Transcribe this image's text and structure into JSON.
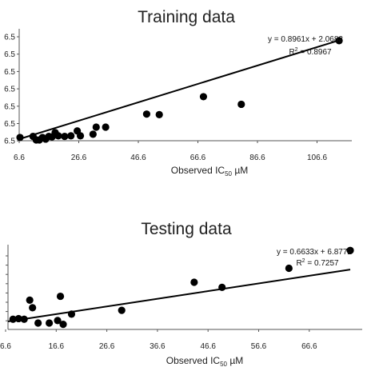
{
  "chart_data": [
    {
      "type": "scatter",
      "title": "Training data",
      "xlabel": "Observed IC50 µM",
      "xlabel_main": "Observed IC",
      "xlabel_sub": "50",
      "xlabel_unit": " µM",
      "xlim": [
        6.6,
        110
      ],
      "ylim": [
        6.5,
        106.5
      ],
      "x_ticks": [
        "6.6",
        "26.6",
        "46.6",
        "66.6",
        "86.6",
        "106.6"
      ],
      "y_ticks": [
        "6.5",
        "6.5",
        "6.5",
        "6.5",
        "6.5",
        "6.5",
        "6.5"
      ],
      "equation": "y = 0.8961x + 2.0682",
      "r2_label": "R",
      "r2_sup": "2",
      "r2_value": " = 0.8967",
      "trendline": {
        "slope": 0.8961,
        "intercept": 2.0682
      },
      "points": [
        {
          "x": 6.6,
          "y": 9.5
        },
        {
          "x": 11,
          "y": 10.5
        },
        {
          "x": 12,
          "y": 7
        },
        {
          "x": 13,
          "y": 6.5
        },
        {
          "x": 14,
          "y": 9.5
        },
        {
          "x": 15,
          "y": 8
        },
        {
          "x": 16,
          "y": 10.5
        },
        {
          "x": 17,
          "y": 10
        },
        {
          "x": 18,
          "y": 14
        },
        {
          "x": 19,
          "y": 11
        },
        {
          "x": 21,
          "y": 10.5
        },
        {
          "x": 23,
          "y": 11
        },
        {
          "x": 25,
          "y": 15.5
        },
        {
          "x": 26,
          "y": 11
        },
        {
          "x": 30,
          "y": 12.5
        },
        {
          "x": 31,
          "y": 19
        },
        {
          "x": 34,
          "y": 19
        },
        {
          "x": 47,
          "y": 31
        },
        {
          "x": 51,
          "y": 30.5
        },
        {
          "x": 65,
          "y": 47
        },
        {
          "x": 77,
          "y": 40
        },
        {
          "x": 108,
          "y": 98.5
        }
      ]
    },
    {
      "type": "scatter",
      "title": "Testing data",
      "xlabel": "Observed IC50 µM",
      "xlabel_main": "Observed IC",
      "xlabel_sub": "50",
      "xlabel_unit": " µM",
      "xlim": [
        6.6,
        69
      ],
      "ylim": [
        5,
        69
      ],
      "x_ticks": [
        "6.6",
        "16.6",
        "26.6",
        "36.6",
        "46.6",
        "56.6",
        "66.6"
      ],
      "y_ticks": [],
      "equation": "y = 0.6633x + 6.8772",
      "r2_label": "R",
      "r2_sup": "2",
      "r2_value": " = 0.7257",
      "trendline": {
        "slope": 0.6633,
        "intercept": 6.8772
      },
      "points": [
        {
          "x": 7.5,
          "y": 13
        },
        {
          "x": 8.5,
          "y": 13.5
        },
        {
          "x": 9.5,
          "y": 13
        },
        {
          "x": 10.5,
          "y": 28
        },
        {
          "x": 11,
          "y": 22
        },
        {
          "x": 12,
          "y": 10
        },
        {
          "x": 14,
          "y": 10
        },
        {
          "x": 15.5,
          "y": 12
        },
        {
          "x": 16,
          "y": 31
        },
        {
          "x": 16.5,
          "y": 9
        },
        {
          "x": 18,
          "y": 17
        },
        {
          "x": 27,
          "y": 20
        },
        {
          "x": 40,
          "y": 42
        },
        {
          "x": 45,
          "y": 38
        },
        {
          "x": 57,
          "y": 53
        },
        {
          "x": 68,
          "y": 67
        }
      ]
    }
  ]
}
